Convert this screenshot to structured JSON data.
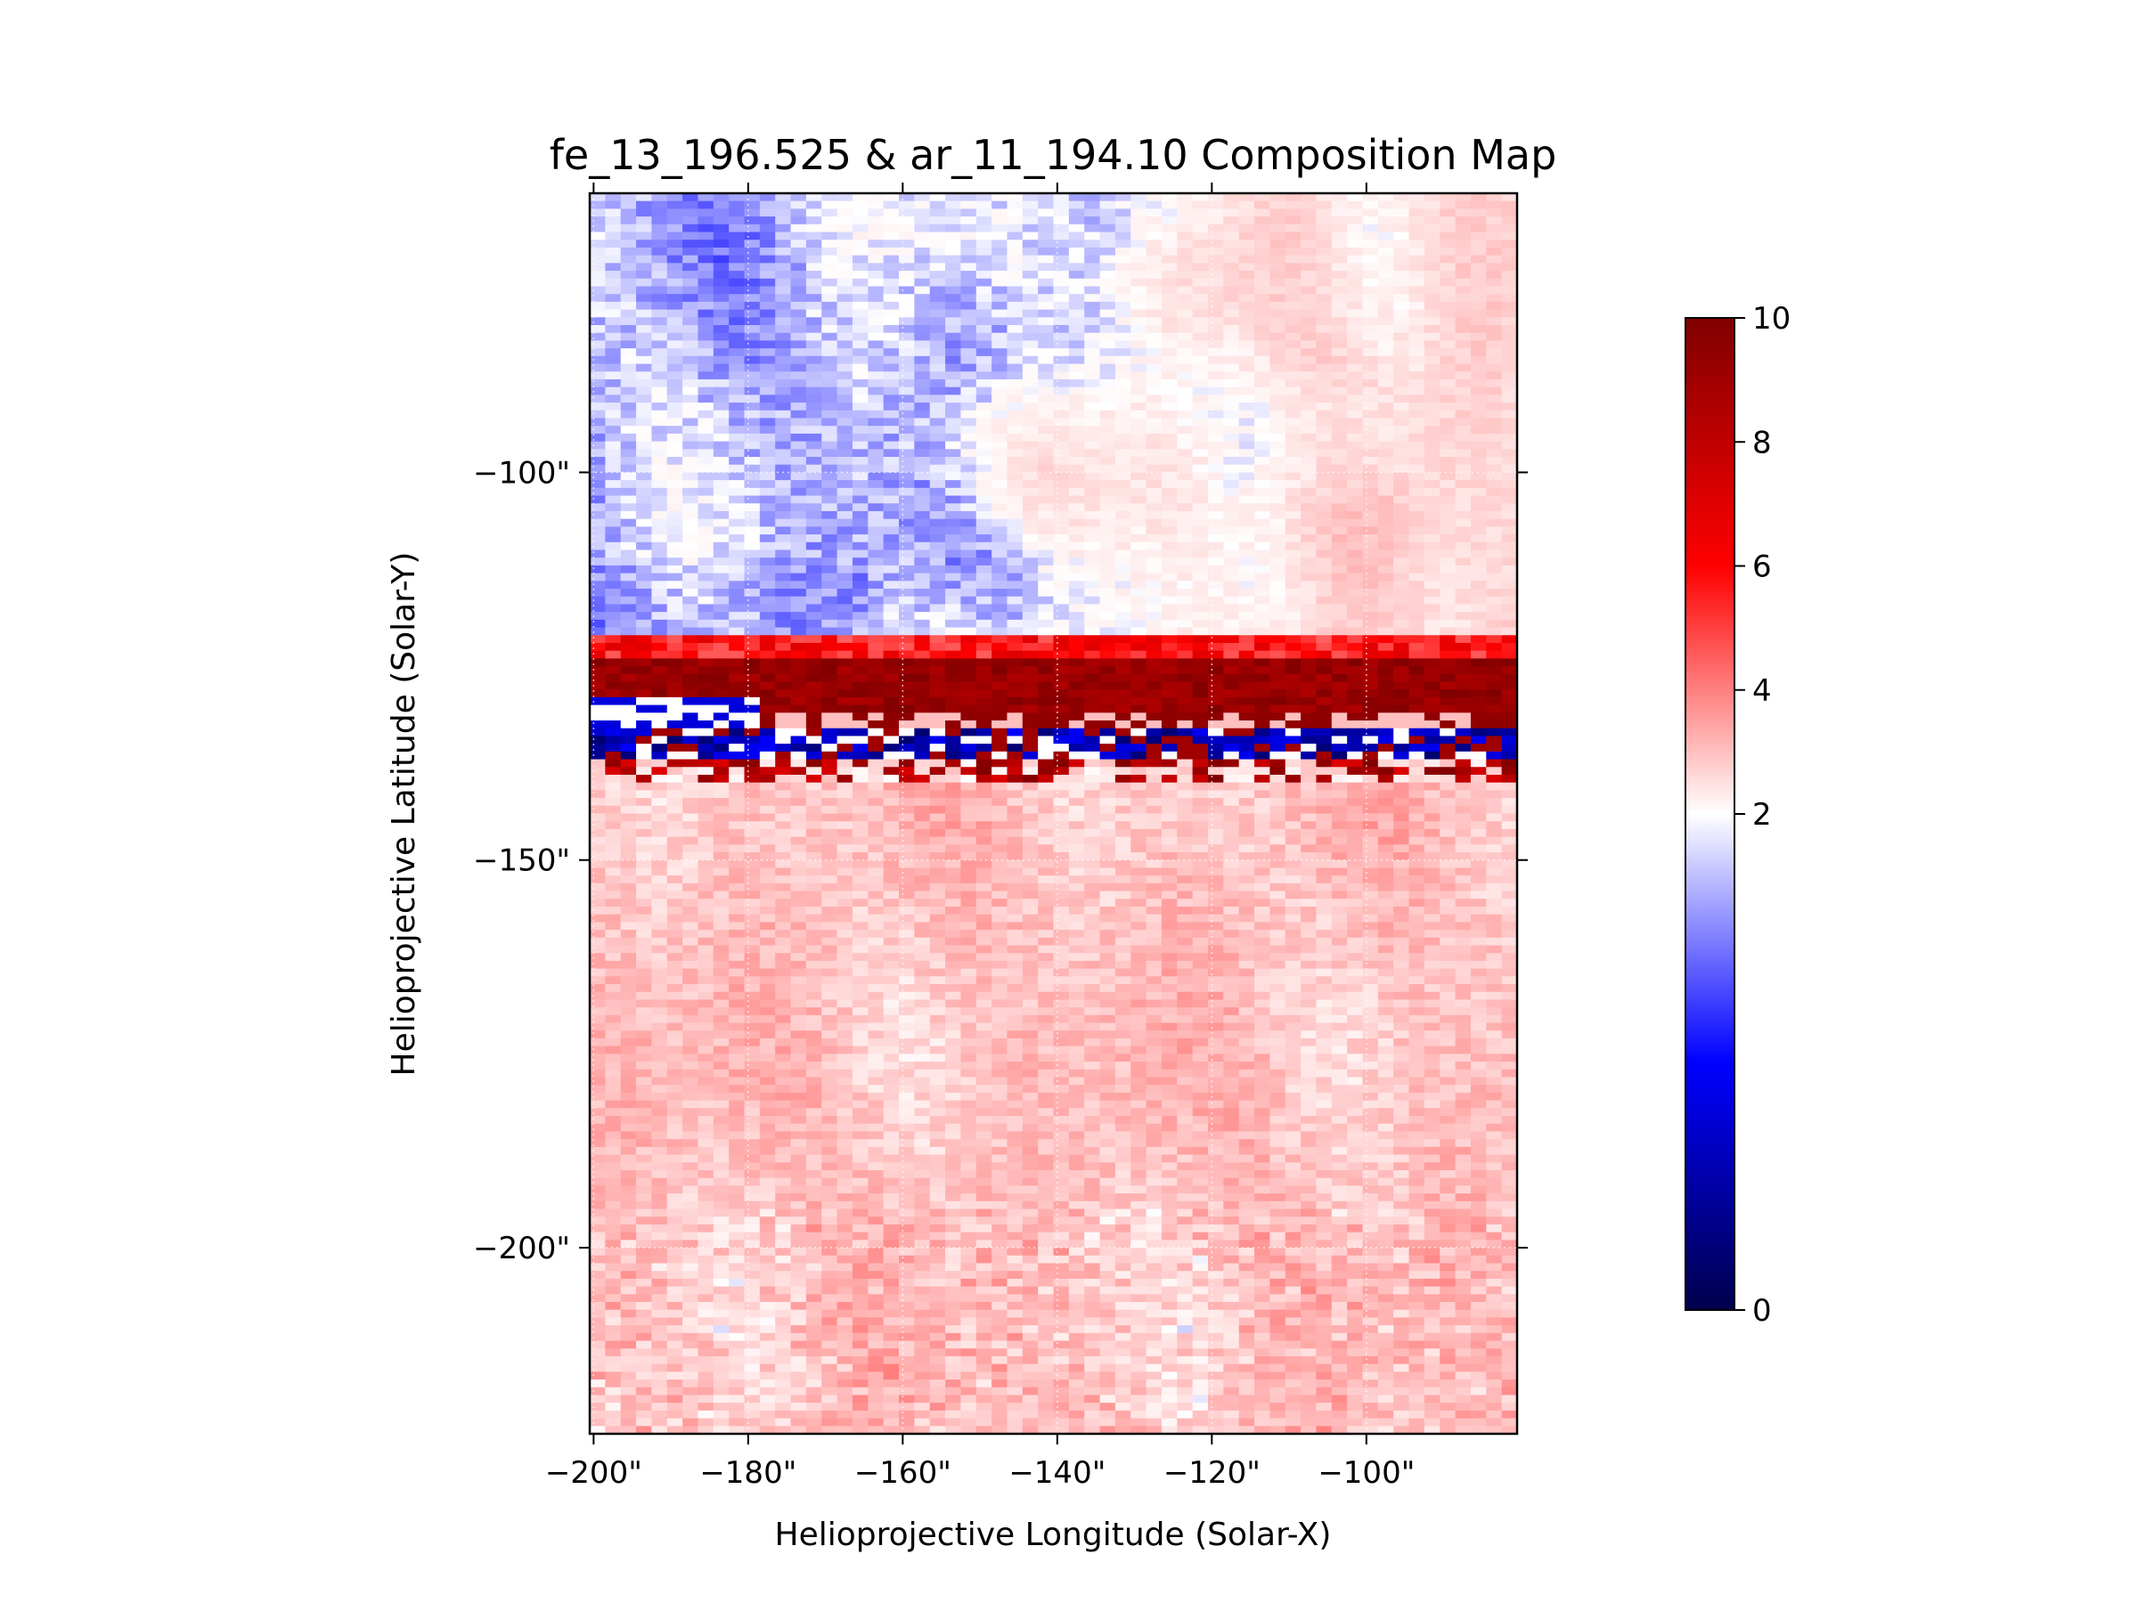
{
  "chart_data": {
    "type": "heatmap",
    "title": "fe_13_196.525 & ar_11_194.10 Composition Map",
    "xlabel": "Helioprojective Longitude (Solar-X)",
    "ylabel": "Helioprojective Latitude (Solar-Y)",
    "xlim": [
      -200.5,
      -80.5
    ],
    "ylim": [
      -224,
      -64
    ],
    "x_ticks": [
      {
        "value": -200,
        "label": "−200\""
      },
      {
        "value": -180,
        "label": "−180\""
      },
      {
        "value": -160,
        "label": "−160\""
      },
      {
        "value": -140,
        "label": "−140\""
      },
      {
        "value": -120,
        "label": "−120\""
      },
      {
        "value": -100,
        "label": "−100\""
      }
    ],
    "y_ticks": [
      {
        "value": -100,
        "label": "−100\""
      },
      {
        "value": -150,
        "label": "−150\""
      },
      {
        "value": -200,
        "label": "−200\""
      }
    ],
    "grid": true,
    "colormap": "seismic",
    "colorbar": {
      "vmin": 0,
      "vmax": 10,
      "center": 2,
      "ticks": [
        {
          "value": 0,
          "label": "0"
        },
        {
          "value": 2,
          "label": "2"
        },
        {
          "value": 4,
          "label": "4"
        },
        {
          "value": 6,
          "label": "6"
        },
        {
          "value": 8,
          "label": "8"
        },
        {
          "value": 10,
          "label": "10"
        }
      ]
    },
    "regions": [
      {
        "y_range": [
          -224,
          -125
        ],
        "typical_value": 2.8,
        "description": "mostly light red"
      },
      {
        "y_range": [
          -125,
          -139
        ],
        "typical_value": 9,
        "description": "dark red band with blue/dark blue stripes"
      },
      {
        "y_range": [
          -120,
          -64
        ],
        "left_value": 1.6,
        "right_value": 2.5,
        "description": "blue on left, light red on right"
      }
    ],
    "colors": {
      "low": "#00004c",
      "mid_blue": "#0000ff",
      "center": "#ffffff",
      "mid_red": "#ff0000",
      "high": "#800000"
    }
  }
}
